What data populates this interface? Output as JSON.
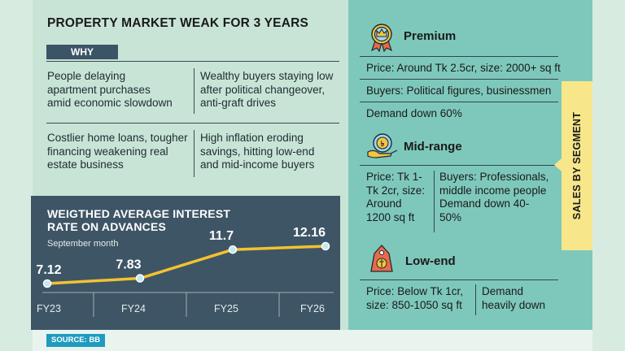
{
  "title": "PROPERTY MARKET WEAK FOR 3 YEARS",
  "why_label": "WHY",
  "reasons": [
    [
      "People delaying",
      "apartment purchases",
      "amid economic slowdown"
    ],
    [
      "Wealthy buyers staying low",
      "after political changeover,",
      "anti-graft drives"
    ],
    [
      "Costlier home loans, tougher",
      "financing weakening real",
      "estate business"
    ],
    [
      "High inflation eroding",
      "savings, hitting low-end",
      "and mid-income buyers"
    ]
  ],
  "source": "SOURCE: BB",
  "side_tab": "SALES BY SEGMENT",
  "segments": {
    "premium": {
      "name": "Premium",
      "icon": "crown-badge-icon",
      "lines": [
        "Price: Around Tk 2.5cr, size: 2000+ sq ft",
        "Buyers: Political figures, businessmen",
        "Demand down 60%"
      ]
    },
    "midrange": {
      "name": "Mid-range",
      "icon": "coin-hand-icon",
      "left": [
        "Price: Tk 1-",
        "Tk 2cr, size:",
        "Around",
        "1200 sq ft"
      ],
      "right": [
        "Buyers: Professionals,",
        "middle income people",
        "Demand down 40-",
        "50%"
      ]
    },
    "lowend": {
      "name": "Low-end",
      "icon": "price-tag-icon",
      "left": [
        "Price: Below Tk 1cr,",
        "size: 850-1050 sq ft"
      ],
      "right": [
        "Demand",
        "heavily down"
      ]
    }
  },
  "colors": {
    "background": "#cfe7da",
    "right_panel": "#7ec8bb",
    "chart_box": "#3e5566",
    "line": "#f2c230",
    "marker": "#bfe9f4",
    "side_tab": "#f7e78a",
    "source_badge": "#1f9bbf"
  },
  "chart_data": {
    "type": "line",
    "title": "WEIGTHED AVERAGE INTEREST RATE ON ADVANCES",
    "title_lines": [
      "WEIGTHED AVERAGE INTEREST",
      "RATE ON ADVANCES"
    ],
    "subtitle": "September month",
    "categories": [
      "FY23",
      "FY24",
      "FY25",
      "FY26"
    ],
    "values": [
      7.12,
      7.83,
      11.7,
      12.16
    ],
    "value_labels": [
      "7.12",
      "7.83",
      "11.7",
      "12.16"
    ],
    "xlabel": "",
    "ylabel": "",
    "grid": false
  }
}
